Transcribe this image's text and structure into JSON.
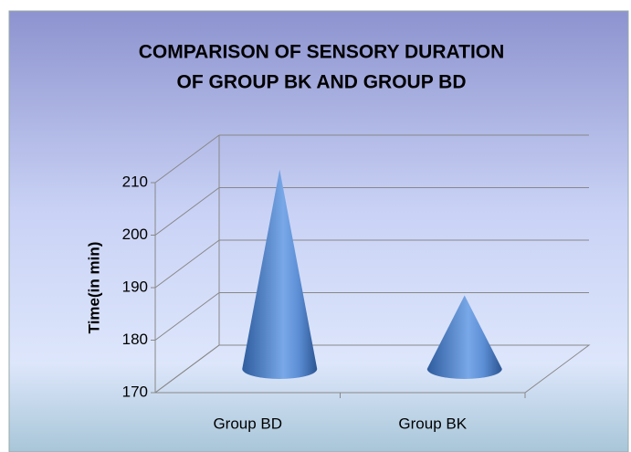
{
  "chart_data": {
    "type": "cone",
    "title": [
      "COMPARISON OF SENSORY DURATION",
      "OF GROUP BK AND GROUP BD"
    ],
    "ylabel": "Time(in min)",
    "categories": [
      "Group BD",
      "Group BK"
    ],
    "values": [
      208,
      184
    ],
    "color": "#4a7cc4",
    "ylim": [
      170,
      210
    ],
    "yticks": [
      170,
      180,
      190,
      200,
      210
    ],
    "grid": true
  }
}
